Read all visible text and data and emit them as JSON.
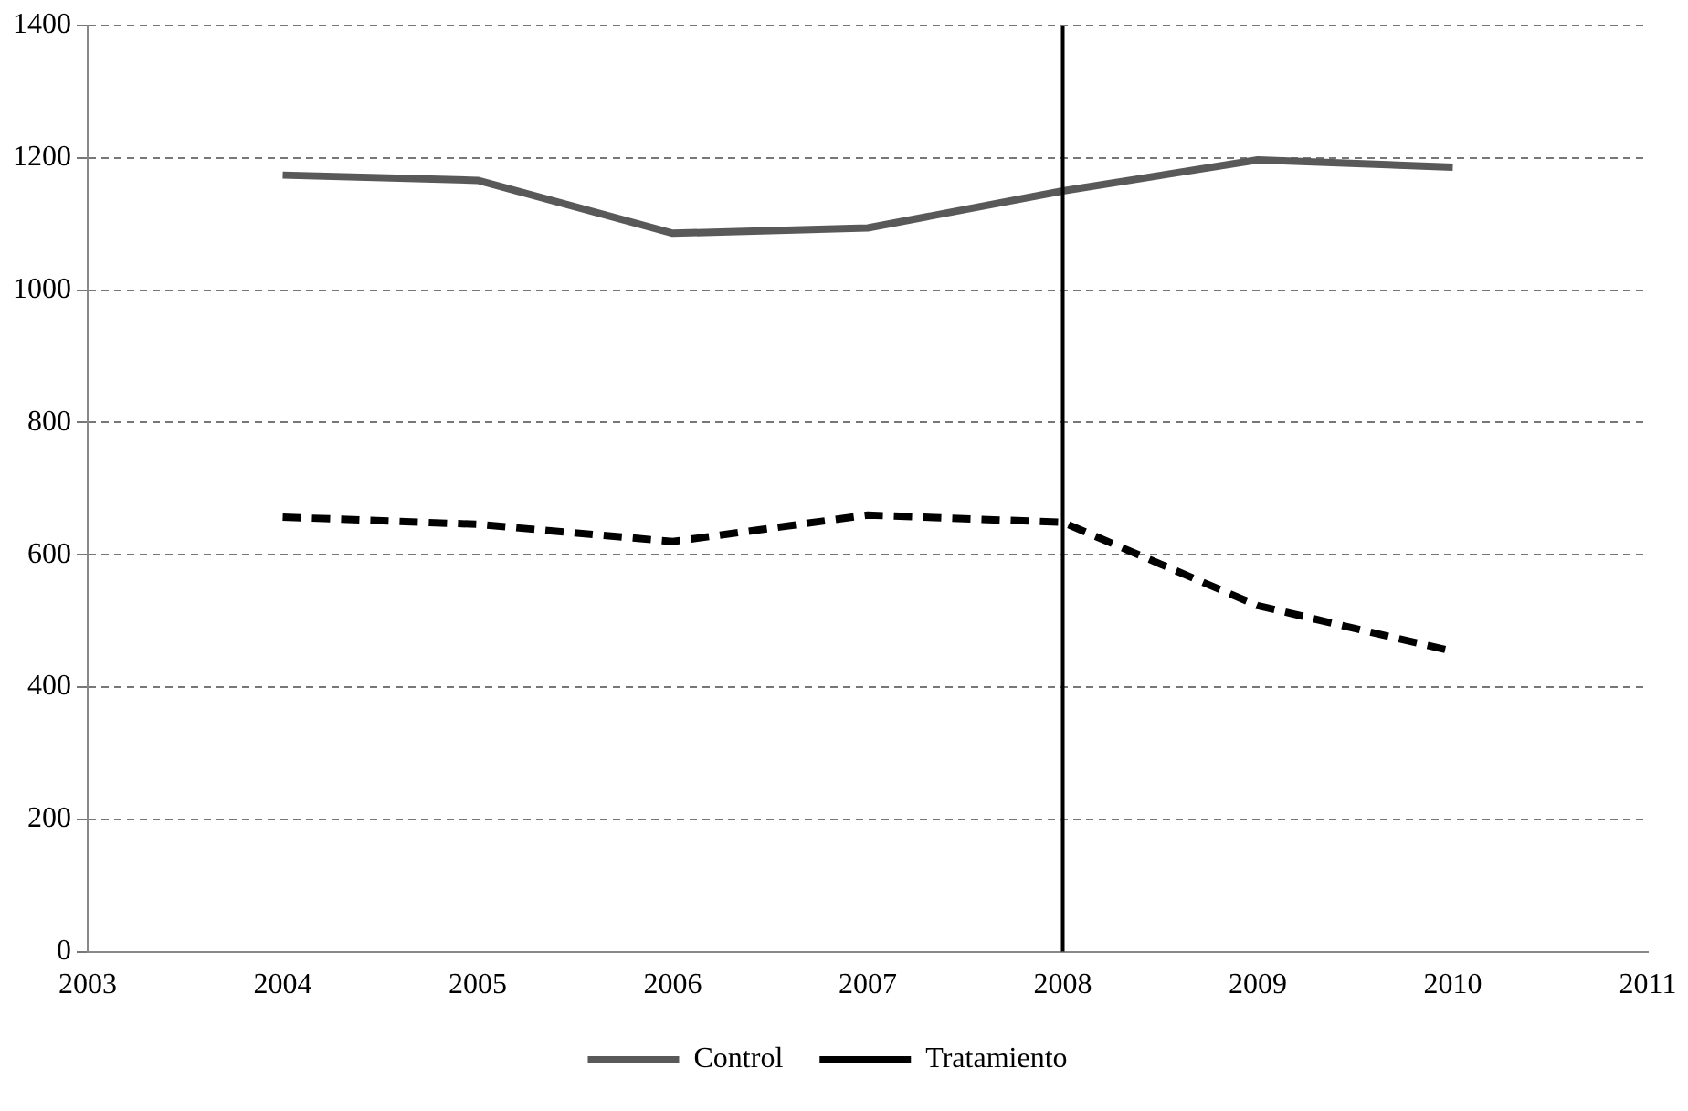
{
  "chart_data": {
    "type": "line",
    "x": [
      2004,
      2005,
      2006,
      2007,
      2008,
      2009,
      2010
    ],
    "series": [
      {
        "name": "Control",
        "color": "#595959",
        "values": [
          1174,
          1166,
          1086,
          1094,
          1150,
          1197,
          1186
        ],
        "line_style": "solid"
      },
      {
        "name": "Tratamiento",
        "color": "#000000",
        "values": [
          657,
          646,
          620,
          660,
          649,
          523,
          454
        ],
        "line_style": "dashed"
      }
    ],
    "xlim": [
      2003,
      2011
    ],
    "xticks": [
      2003,
      2004,
      2005,
      2006,
      2007,
      2008,
      2009,
      2010,
      2011
    ],
    "ylim": [
      0,
      1400
    ],
    "yticks": [
      0,
      200,
      400,
      600,
      800,
      1000,
      1200,
      1400
    ],
    "grid": "y",
    "legend": "bottom",
    "marker": "none",
    "ref_lines": [
      {
        "axis": "x",
        "value": 2008,
        "color": "#000000",
        "line_style": "solid"
      }
    ]
  }
}
